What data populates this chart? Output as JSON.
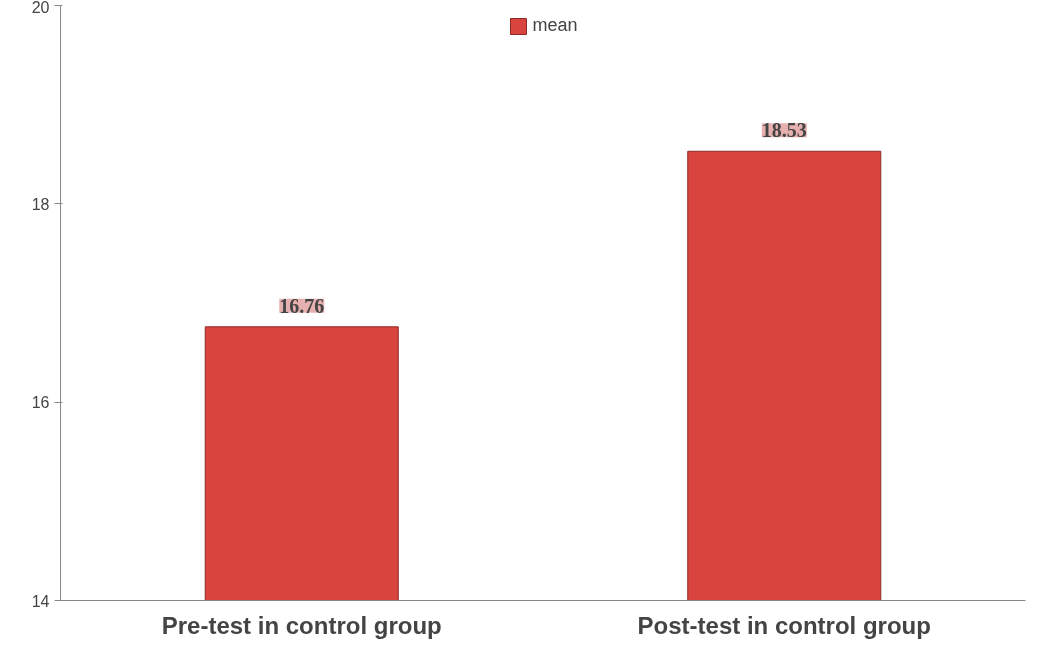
{
  "chart_data": {
    "type": "bar",
    "categories": [
      "Pre-test in control group",
      "Post-test in control group"
    ],
    "series": [
      {
        "name": "mean",
        "color": "#d9443f",
        "values": [
          16.76,
          18.53
        ]
      }
    ],
    "ylim": [
      14,
      20
    ],
    "yticks": [
      14,
      16,
      18,
      20
    ],
    "data_labels": true,
    "grid": false,
    "legend": "top"
  }
}
